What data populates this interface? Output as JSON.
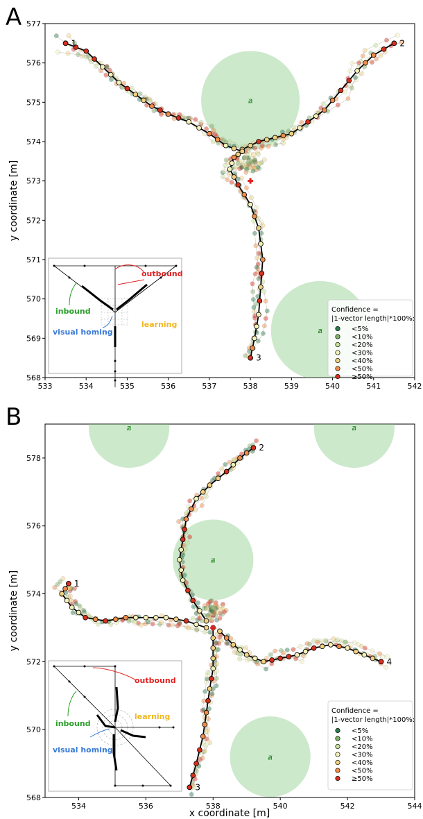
{
  "chart_data": [
    {
      "panel_letter": "A",
      "type": "scatter",
      "title": "",
      "xlabel": "",
      "ylabel": "y coordinate [m]",
      "xlim": [
        533,
        542
      ],
      "ylim": [
        568,
        577
      ],
      "xticks": [
        533,
        534,
        535,
        536,
        537,
        538,
        539,
        540,
        541,
        542
      ],
      "yticks": [
        568,
        569,
        570,
        571,
        572,
        573,
        574,
        575,
        576,
        577
      ],
      "green_zones": [
        {
          "center": [
            538.0,
            575.05
          ],
          "radius": 1.2
        },
        {
          "center": [
            539.7,
            569.2
          ],
          "radius": 1.2
        }
      ],
      "markers": [
        {
          "x": 538.0,
          "y": 573.0,
          "label": "nest",
          "symbol": "cross",
          "color": "#e02020"
        }
      ],
      "start_labels": [
        {
          "text": "1",
          "x": 533.5,
          "y": 576.5
        },
        {
          "text": "2",
          "x": 541.5,
          "y": 576.5
        },
        {
          "text": "3",
          "x": 538.0,
          "y": 568.5
        }
      ],
      "series": [
        {
          "route": "1",
          "x": [
            533.5,
            534.0,
            534.4,
            534.8,
            535.2,
            535.6,
            536.0,
            536.5,
            537.0,
            537.4,
            537.8
          ],
          "y": [
            576.5,
            576.3,
            575.9,
            575.5,
            575.2,
            574.9,
            574.7,
            574.5,
            574.2,
            573.9,
            573.75
          ]
        },
        {
          "route": "2",
          "x": [
            541.5,
            541.0,
            540.6,
            540.2,
            539.8,
            539.4,
            539.0,
            538.6,
            538.2,
            537.8
          ],
          "y": [
            576.5,
            576.2,
            575.8,
            575.3,
            574.8,
            574.5,
            574.2,
            574.1,
            574.0,
            573.8
          ]
        },
        {
          "route": "3",
          "x": [
            538.0,
            538.1,
            538.2,
            538.25,
            538.3,
            538.2,
            538.0,
            537.7,
            537.5,
            537.6,
            537.8
          ],
          "y": [
            568.5,
            569.0,
            569.6,
            570.3,
            571.0,
            571.8,
            572.4,
            572.9,
            573.3,
            573.6,
            573.75
          ]
        }
      ],
      "legend": {
        "title": "Confidence = |1-vector length|*100%:",
        "position": "lower-right",
        "items": [
          {
            "label": "<5%",
            "color": "#2e7d4f"
          },
          {
            "label": "<10%",
            "color": "#7fb069"
          },
          {
            "label": "<20%",
            "color": "#c9e29a"
          },
          {
            "label": "<30%",
            "color": "#f2f2b8"
          },
          {
            "label": "<40%",
            "color": "#f0d080"
          },
          {
            "label": "<50%",
            "color": "#ef8d4a"
          },
          {
            "label": "≥50%",
            "color": "#d7301f"
          }
        ]
      },
      "inset": {
        "labels": {
          "outbound": "outbound",
          "inbound": "inbound",
          "learning": "learning",
          "visual_homing": "visual homing"
        }
      }
    },
    {
      "panel_letter": "B",
      "type": "scatter",
      "title": "",
      "xlabel": "x coordinate [m]",
      "ylabel": "y coordinate [m]",
      "xlim": [
        533,
        544
      ],
      "ylim": [
        568,
        579
      ],
      "xticks": [
        534,
        536,
        538,
        540,
        542,
        544
      ],
      "yticks": [
        568,
        570,
        572,
        574,
        576,
        578
      ],
      "green_zones": [
        {
          "center": [
            535.5,
            578.9
          ],
          "radius": 1.2
        },
        {
          "center": [
            538.0,
            575.0
          ],
          "radius": 1.2
        },
        {
          "center": [
            542.2,
            578.9
          ],
          "radius": 1.2
        },
        {
          "center": [
            539.7,
            569.2
          ],
          "radius": 1.2
        }
      ],
      "markers": [
        {
          "x": 538.0,
          "y": 573.0,
          "label": "nest",
          "symbol": "cross",
          "color": "#e02020"
        }
      ],
      "start_labels": [
        {
          "text": "1",
          "x": 533.7,
          "y": 574.3
        },
        {
          "text": "2",
          "x": 539.2,
          "y": 578.3
        },
        {
          "text": "3",
          "x": 537.3,
          "y": 568.3
        },
        {
          "text": "4",
          "x": 543.0,
          "y": 572.0
        }
      ],
      "series": [
        {
          "route": "1",
          "x": [
            533.7,
            533.5,
            533.8,
            534.2,
            534.8,
            535.4,
            536.0,
            536.6,
            537.2,
            537.8
          ],
          "y": [
            574.3,
            574.0,
            573.6,
            573.3,
            573.2,
            573.3,
            573.3,
            573.3,
            573.2,
            573.0
          ]
        },
        {
          "route": "2",
          "x": [
            539.2,
            538.8,
            538.4,
            537.9,
            537.5,
            537.2,
            537.1,
            537.0,
            537.1,
            537.4,
            537.8
          ],
          "y": [
            578.3,
            578.0,
            577.6,
            577.2,
            576.8,
            576.2,
            575.6,
            575.0,
            574.4,
            573.8,
            573.2
          ]
        },
        {
          "route": "3",
          "x": [
            537.3,
            537.5,
            537.7,
            537.8,
            537.9,
            538.0,
            538.0,
            538.0
          ],
          "y": [
            568.3,
            569.0,
            569.8,
            570.5,
            571.2,
            571.8,
            572.4,
            573.0
          ]
        },
        {
          "route": "4",
          "x": [
            543.0,
            542.5,
            542.0,
            541.5,
            541.0,
            540.5,
            540.0,
            539.5,
            539.0,
            538.6,
            538.2
          ],
          "y": [
            572.0,
            572.2,
            572.4,
            572.5,
            572.4,
            572.2,
            572.1,
            572.0,
            572.2,
            572.5,
            572.9
          ]
        }
      ],
      "legend": {
        "title": "Confidence = |1-vector length|*100%:",
        "position": "lower-right",
        "items": [
          {
            "label": "<5%",
            "color": "#2e7d4f"
          },
          {
            "label": "<10%",
            "color": "#7fb069"
          },
          {
            "label": "<20%",
            "color": "#c9e29a"
          },
          {
            "label": "<30%",
            "color": "#f2f2b8"
          },
          {
            "label": "<40%",
            "color": "#f0d080"
          },
          {
            "label": "<50%",
            "color": "#ef8d4a"
          },
          {
            "label": "≥50%",
            "color": "#d7301f"
          }
        ]
      },
      "inset": {
        "labels": {
          "outbound": "outbound",
          "inbound": "inbound",
          "learning": "learning",
          "visual_homing": "visual homing"
        }
      }
    }
  ]
}
